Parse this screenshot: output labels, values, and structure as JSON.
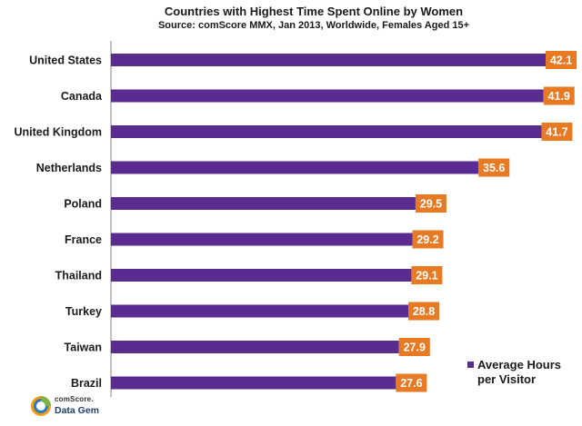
{
  "chart_data": {
    "type": "bar",
    "orientation": "horizontal",
    "title": "Countries with Highest Time Spent Online by Women",
    "subtitle": "Source: comScore MMX, Jan 2013,  Worldwide, Females Aged 15+",
    "categories": [
      "United States",
      "Canada",
      "United Kingdom",
      "Netherlands",
      "Poland",
      "France",
      "Thailand",
      "Turkey",
      "Taiwan",
      "Brazil"
    ],
    "values": [
      42.1,
      41.9,
      41.7,
      35.6,
      29.5,
      29.2,
      29.1,
      28.8,
      27.9,
      27.6
    ],
    "value_labels": [
      "42.1",
      "41.9",
      "41.7",
      "35.6",
      "29.5",
      "29.2",
      "29.1",
      "28.8",
      "27.9",
      "27.6"
    ],
    "series_name": "Average Hours per Visitor",
    "legend": {
      "line1": "Average Hours",
      "line2": "per Visitor",
      "position": "bottom-right"
    },
    "xlim": [
      0,
      42.1
    ],
    "grid": false,
    "bar_color": "#5b2c8f",
    "label_color": "#e97a24"
  },
  "branding": {
    "line1": "comScore.",
    "line2": "Data Gem"
  },
  "colors": {
    "axis": "#808080",
    "logo_orange": "#f39c12",
    "logo_blue": "#2a7ac0",
    "logo_green": "#7cb342"
  }
}
